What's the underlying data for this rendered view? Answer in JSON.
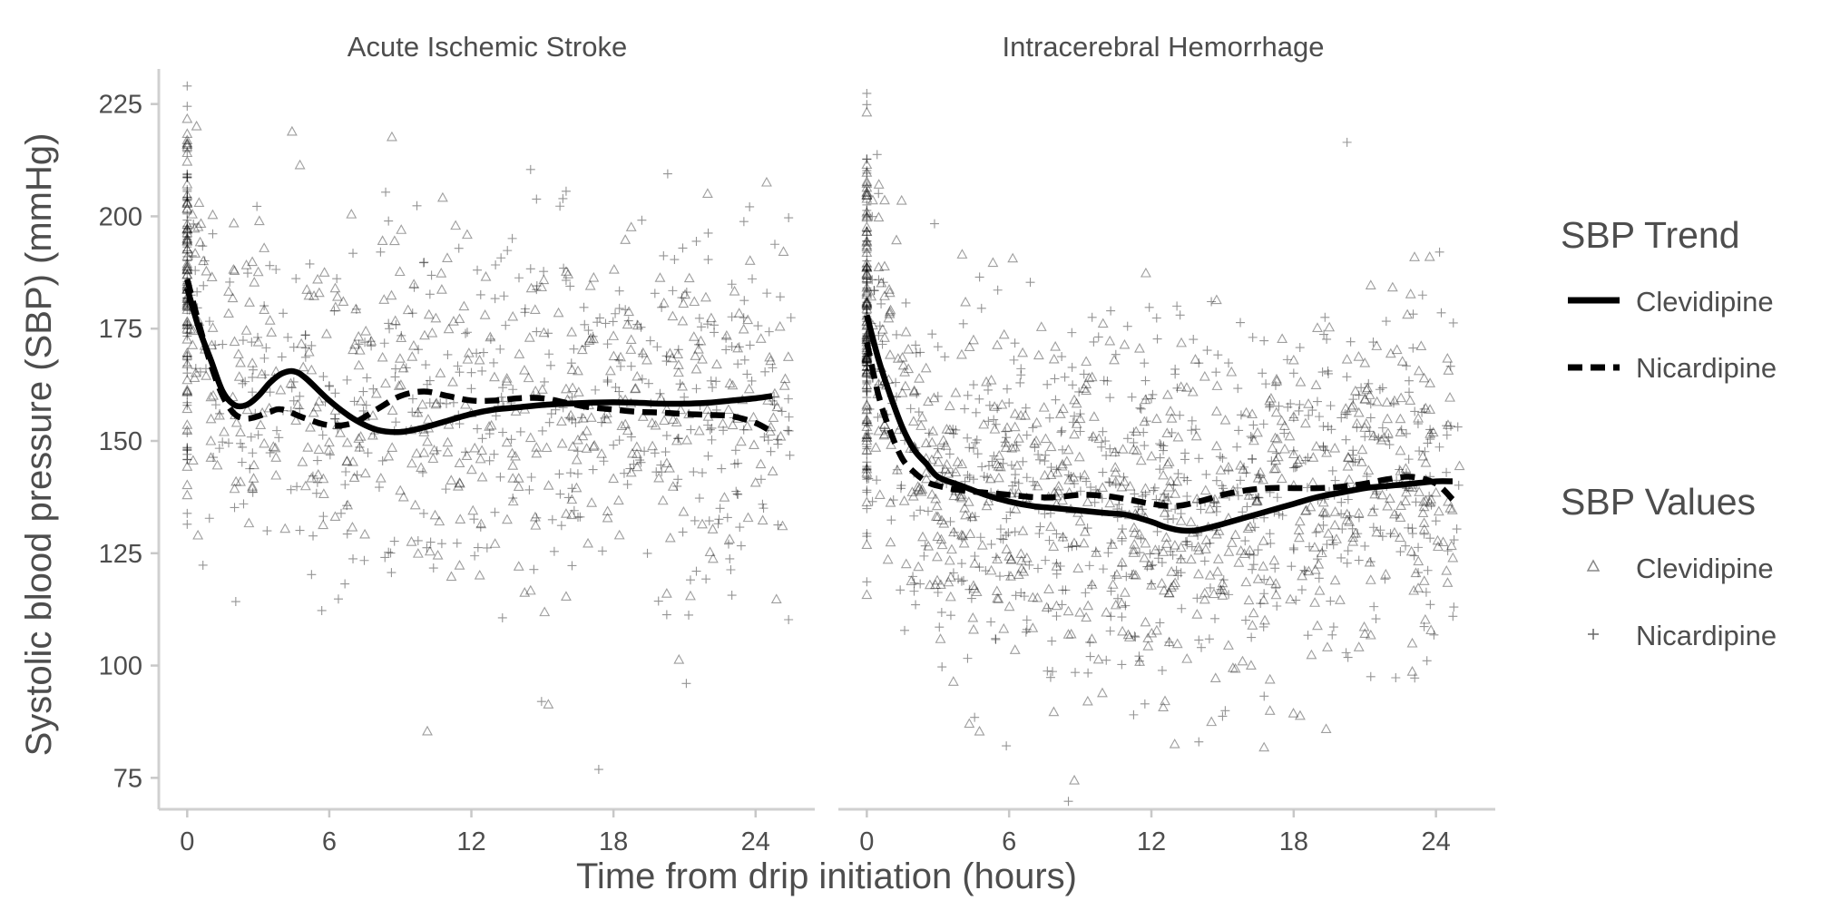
{
  "chart_data": {
    "type": "scatter",
    "xlabel": "Time from drip initiation (hours)",
    "ylabel": "Systolic blood pressure (SBP) (mmHg)",
    "xlim": [
      -1.2,
      26.5
    ],
    "ylim": [
      68,
      232
    ],
    "x_ticks": [
      0,
      6,
      12,
      18,
      24
    ],
    "y_ticks": [
      75,
      100,
      125,
      150,
      175,
      200,
      225
    ],
    "grid": false,
    "legend_position": "right",
    "legend": {
      "trend_title": "SBP Trend",
      "trend_entries": [
        {
          "label": "Clevidipine",
          "linetype": "solid"
        },
        {
          "label": "Nicardipine",
          "linetype": "dashed"
        }
      ],
      "values_title": "SBP Values",
      "values_entries": [
        {
          "label": "Clevidipine",
          "shape": "triangle"
        },
        {
          "label": "Nicardipine",
          "shape": "plus"
        }
      ]
    },
    "panels": [
      {
        "title": "Acute Ischemic Stroke",
        "trends": [
          {
            "name": "Clevidipine",
            "linetype": "solid",
            "x": [
              0,
              0.5,
              1,
              1.5,
              2,
              2.5,
              3,
              3.5,
              4,
              4.5,
              5,
              6,
              7,
              8,
              9,
              10,
              11,
              12,
              13,
              14,
              15,
              16,
              17,
              18,
              19,
              20,
              21,
              22,
              23,
              24,
              24.7
            ],
            "y": [
              184,
              175,
              168,
              161,
              158,
              158,
              160,
              163,
              165,
              165.5,
              164,
              159,
              155,
              152.5,
              152,
              153,
              154.5,
              156,
              157,
              157.5,
              158,
              158.3,
              158.5,
              158.6,
              158.5,
              158.3,
              158.3,
              158.5,
              159,
              159.5,
              160
            ]
          },
          {
            "name": "Nicardipine",
            "linetype": "dashed",
            "x": [
              0,
              0.5,
              1,
              1.5,
              2,
              2.5,
              3,
              3.5,
              4,
              5,
              6,
              7,
              8,
              9,
              10,
              11,
              12,
              13,
              14,
              15,
              16,
              17,
              18,
              19,
              20,
              21,
              22,
              23,
              24,
              24.7
            ],
            "y": [
              186,
              176,
              167,
              160,
              156,
              155,
              155.5,
              156.5,
              157,
              155,
              153.5,
              154,
              157,
              160,
              161,
              160,
              159,
              159,
              159.5,
              159.5,
              158.5,
              157.5,
              157,
              156.5,
              156.3,
              156,
              155.8,
              155.5,
              154,
              152
            ]
          }
        ]
      },
      {
        "title": "Intracerebral Hemorrhage",
        "trends": [
          {
            "name": "Clevidipine",
            "linetype": "solid",
            "x": [
              0,
              0.5,
              1,
              1.5,
              2,
              2.5,
              3,
              4,
              5,
              6,
              7,
              8,
              9,
              10,
              11,
              12,
              12.5,
              13,
              13.5,
              14,
              15,
              16,
              17,
              18,
              19,
              20,
              21,
              22,
              23,
              24,
              24.7
            ],
            "y": [
              178,
              168,
              160,
              153,
              148,
              145,
              142,
              140,
              138,
              136.5,
              135.5,
              135,
              134.5,
              134,
              133.5,
              132,
              131,
              130.3,
              130,
              130.2,
              131.5,
              133,
              134.5,
              136,
              137.5,
              138.5,
              139.5,
              140,
              140.5,
              141,
              141
            ]
          },
          {
            "name": "Nicardipine",
            "linetype": "dashed",
            "x": [
              0,
              0.5,
              1,
              1.5,
              2,
              2.5,
              3,
              4,
              5,
              6,
              7,
              8,
              9,
              10,
              11,
              12,
              13,
              14,
              15,
              16,
              17,
              18,
              19,
              20,
              21,
              22,
              23,
              24,
              24.7
            ],
            "y": [
              172,
              160,
              152,
              146,
              143,
              141,
              140,
              139,
              138.5,
              138,
              137.5,
              137.5,
              138,
              137.8,
              137,
              136,
              135.5,
              136.5,
              138,
              139,
              139.5,
              139.5,
              139.5,
              139.8,
              140.5,
              141.5,
              142,
              140.5,
              137
            ]
          }
        ]
      }
    ]
  }
}
